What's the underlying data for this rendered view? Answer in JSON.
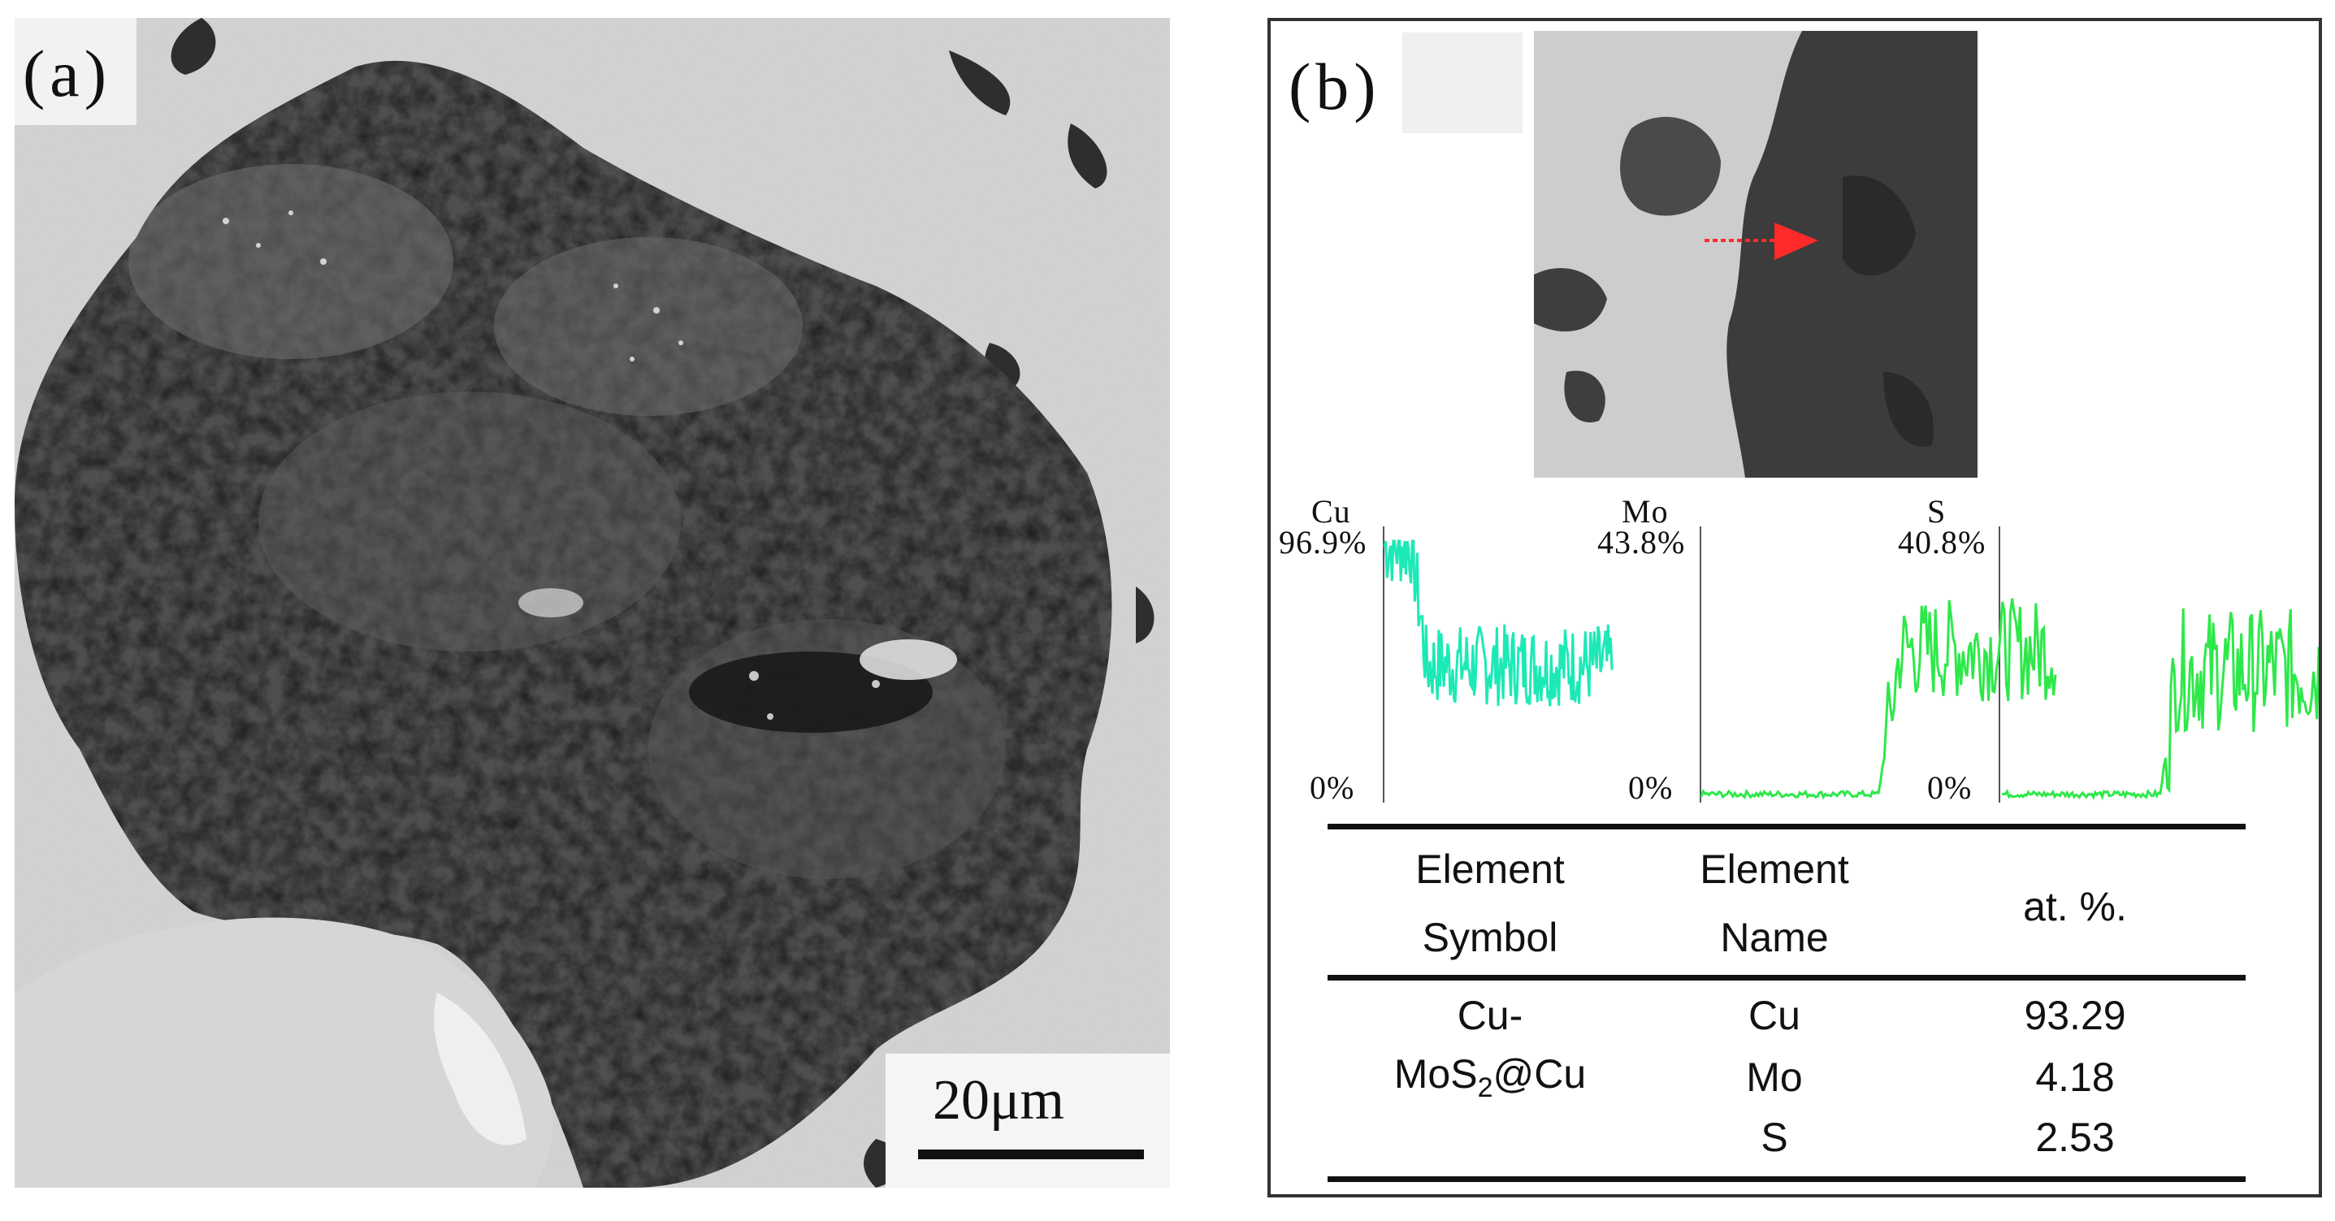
{
  "panel_a": {
    "label": "(a)",
    "scale_bar": "20μm"
  },
  "panel_b": {
    "label": "(b)",
    "line_scans": [
      {
        "element": "Cu",
        "max": "96.9%",
        "min": "0%",
        "color": "#1de9b6"
      },
      {
        "element": "Mo",
        "max": "43.8%",
        "min": "0%",
        "color": "#2ee84a"
      },
      {
        "element": "S",
        "max": "40.8%",
        "min": "0%",
        "color": "#2ee84a"
      }
    ],
    "table": {
      "headers": [
        {
          "line1": "Element",
          "line2": "Symbol"
        },
        {
          "line1": "Element",
          "line2": "Name"
        },
        {
          "line1": "at. %.",
          "line2": ""
        }
      ],
      "sample_line1": "Cu-",
      "sample_line2_pre": "MoS",
      "sample_line2_sub": "2",
      "sample_line2_post": "@Cu",
      "rows": [
        {
          "name": "Cu",
          "value": "93.29"
        },
        {
          "name": "Mo",
          "value": "4.18"
        },
        {
          "name": "S",
          "value": "2.53"
        }
      ]
    }
  }
}
